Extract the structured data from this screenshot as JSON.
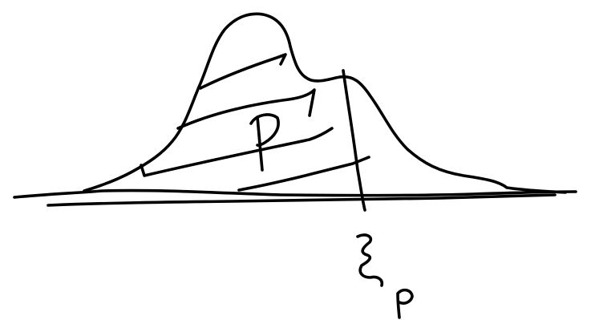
{
  "labels": {
    "shaded_region": "p",
    "quantile_marker": "ξp"
  }
}
